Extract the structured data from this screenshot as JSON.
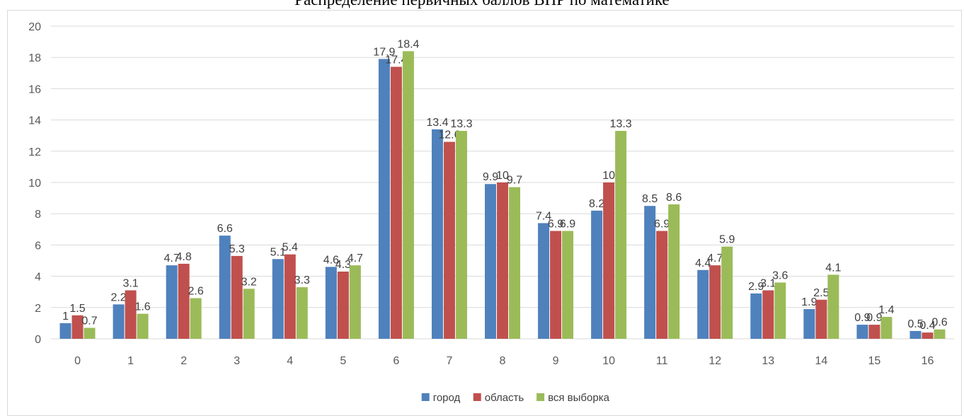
{
  "chart_data": {
    "type": "bar",
    "title": "Распределение первичных баллов ВПР по математике",
    "categories": [
      "0",
      "1",
      "2",
      "3",
      "4",
      "5",
      "6",
      "7",
      "8",
      "9",
      "10",
      "11",
      "12",
      "13",
      "14",
      "15",
      "16"
    ],
    "series": [
      {
        "name": "город",
        "color": "#4f81bd",
        "values": [
          1,
          2.2,
          4.7,
          6.6,
          5.1,
          4.6,
          17.9,
          13.4,
          9.9,
          7.4,
          8.2,
          8.5,
          4.4,
          2.9,
          1.9,
          0.9,
          0.5
        ]
      },
      {
        "name": "область",
        "color": "#c0504d",
        "values": [
          1.5,
          3.1,
          4.8,
          5.3,
          5.4,
          4.3,
          17.4,
          12.6,
          10,
          6.9,
          10,
          6.9,
          4.7,
          3.1,
          2.5,
          0.9,
          0.4
        ]
      },
      {
        "name": "вся выборка",
        "color": "#9bbb59",
        "values": [
          0.7,
          1.6,
          2.6,
          3.2,
          3.3,
          4.7,
          18.4,
          13.3,
          9.7,
          6.9,
          13.3,
          8.6,
          5.9,
          3.6,
          4.1,
          1.4,
          0.6
        ]
      }
    ],
    "ylim": [
      0,
      20
    ],
    "yticks": [
      "0",
      "2",
      "4",
      "6",
      "8",
      "10",
      "12",
      "14",
      "16",
      "18",
      "20"
    ],
    "grid": true,
    "legend": "bottom",
    "xlabel": "",
    "ylabel": ""
  }
}
